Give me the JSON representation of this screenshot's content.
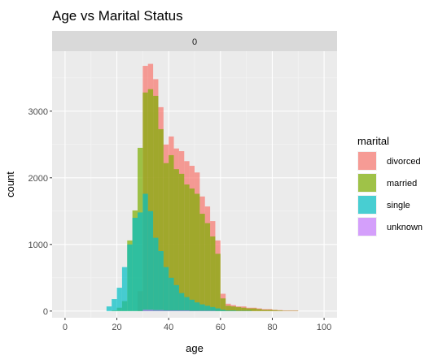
{
  "chart_data": {
    "type": "bar",
    "title": "Age vs Marital Status",
    "facet_label": "0",
    "xlabel": "age",
    "ylabel": "count",
    "xlim": [
      -5,
      105
    ],
    "ylim": [
      -100,
      3900
    ],
    "x_ticks": [
      0,
      20,
      40,
      60,
      80,
      100
    ],
    "y_ticks": [
      0,
      1000,
      2000,
      3000
    ],
    "grid": true,
    "legend_position": "right",
    "legend_title": "marital",
    "bin_width": 2,
    "stacking": "overlay",
    "series": [
      {
        "name": "divorced",
        "color": "#F8766D",
        "values": [
          [
            17,
            0
          ],
          [
            19,
            0
          ],
          [
            21,
            0
          ],
          [
            23,
            0
          ],
          [
            25,
            0
          ],
          [
            27,
            0
          ],
          [
            29,
            300
          ],
          [
            31,
            3680
          ],
          [
            33,
            3710
          ],
          [
            35,
            3480
          ],
          [
            37,
            3060
          ],
          [
            39,
            2500
          ],
          [
            41,
            2620
          ],
          [
            43,
            2440
          ],
          [
            45,
            2400
          ],
          [
            47,
            2250
          ],
          [
            49,
            2180
          ],
          [
            51,
            2080
          ],
          [
            53,
            1720
          ],
          [
            55,
            1570
          ],
          [
            57,
            1350
          ],
          [
            59,
            1060
          ],
          [
            61,
            260
          ],
          [
            63,
            110
          ],
          [
            65,
            90
          ],
          [
            67,
            70
          ],
          [
            69,
            70
          ],
          [
            71,
            50
          ],
          [
            73,
            50
          ],
          [
            75,
            40
          ],
          [
            77,
            30
          ],
          [
            79,
            30
          ],
          [
            81,
            20
          ],
          [
            83,
            15
          ],
          [
            85,
            10
          ],
          [
            87,
            10
          ],
          [
            89,
            10
          ]
        ]
      },
      {
        "name": "married",
        "color": "#7CAE00",
        "values": [
          [
            17,
            0
          ],
          [
            19,
            10
          ],
          [
            21,
            50
          ],
          [
            23,
            150
          ],
          [
            25,
            1060
          ],
          [
            27,
            1510
          ],
          [
            29,
            2450
          ],
          [
            31,
            3280
          ],
          [
            33,
            3330
          ],
          [
            35,
            3230
          ],
          [
            37,
            2730
          ],
          [
            39,
            2220
          ],
          [
            41,
            2340
          ],
          [
            43,
            2130
          ],
          [
            45,
            2060
          ],
          [
            47,
            1900
          ],
          [
            49,
            1840
          ],
          [
            51,
            1760
          ],
          [
            53,
            1460
          ],
          [
            55,
            1320
          ],
          [
            57,
            1120
          ],
          [
            59,
            860
          ],
          [
            61,
            190
          ],
          [
            63,
            80
          ],
          [
            65,
            70
          ],
          [
            67,
            60
          ],
          [
            69,
            50
          ],
          [
            71,
            40
          ],
          [
            73,
            40
          ],
          [
            75,
            30
          ],
          [
            77,
            20
          ],
          [
            79,
            20
          ],
          [
            81,
            15
          ],
          [
            83,
            10
          ],
          [
            85,
            5
          ],
          [
            87,
            5
          ],
          [
            89,
            5
          ]
        ]
      },
      {
        "name": "single",
        "color": "#00BFC4",
        "values": [
          [
            17,
            70
          ],
          [
            19,
            180
          ],
          [
            21,
            350
          ],
          [
            23,
            660
          ],
          [
            25,
            1000
          ],
          [
            27,
            1400
          ],
          [
            29,
            1480
          ],
          [
            31,
            1760
          ],
          [
            33,
            1500
          ],
          [
            35,
            1100
          ],
          [
            37,
            900
          ],
          [
            39,
            660
          ],
          [
            41,
            500
          ],
          [
            43,
            390
          ],
          [
            45,
            270
          ],
          [
            47,
            210
          ],
          [
            49,
            170
          ],
          [
            51,
            130
          ],
          [
            53,
            100
          ],
          [
            55,
            80
          ],
          [
            57,
            60
          ],
          [
            59,
            40
          ],
          [
            61,
            20
          ],
          [
            63,
            10
          ],
          [
            65,
            10
          ],
          [
            67,
            5
          ],
          [
            69,
            5
          ],
          [
            71,
            5
          ],
          [
            73,
            0
          ],
          [
            75,
            0
          ],
          [
            77,
            0
          ],
          [
            79,
            0
          ],
          [
            81,
            0
          ],
          [
            83,
            0
          ],
          [
            85,
            0
          ],
          [
            87,
            0
          ],
          [
            89,
            0
          ]
        ]
      },
      {
        "name": "unknown",
        "color": "#C77CFF",
        "values": [
          [
            31,
            20
          ],
          [
            33,
            20
          ],
          [
            35,
            15
          ],
          [
            37,
            15
          ],
          [
            39,
            10
          ],
          [
            41,
            10
          ],
          [
            43,
            10
          ],
          [
            45,
            10
          ],
          [
            47,
            10
          ],
          [
            49,
            5
          ],
          [
            51,
            5
          ],
          [
            53,
            5
          ],
          [
            55,
            5
          ],
          [
            57,
            5
          ]
        ]
      }
    ]
  }
}
